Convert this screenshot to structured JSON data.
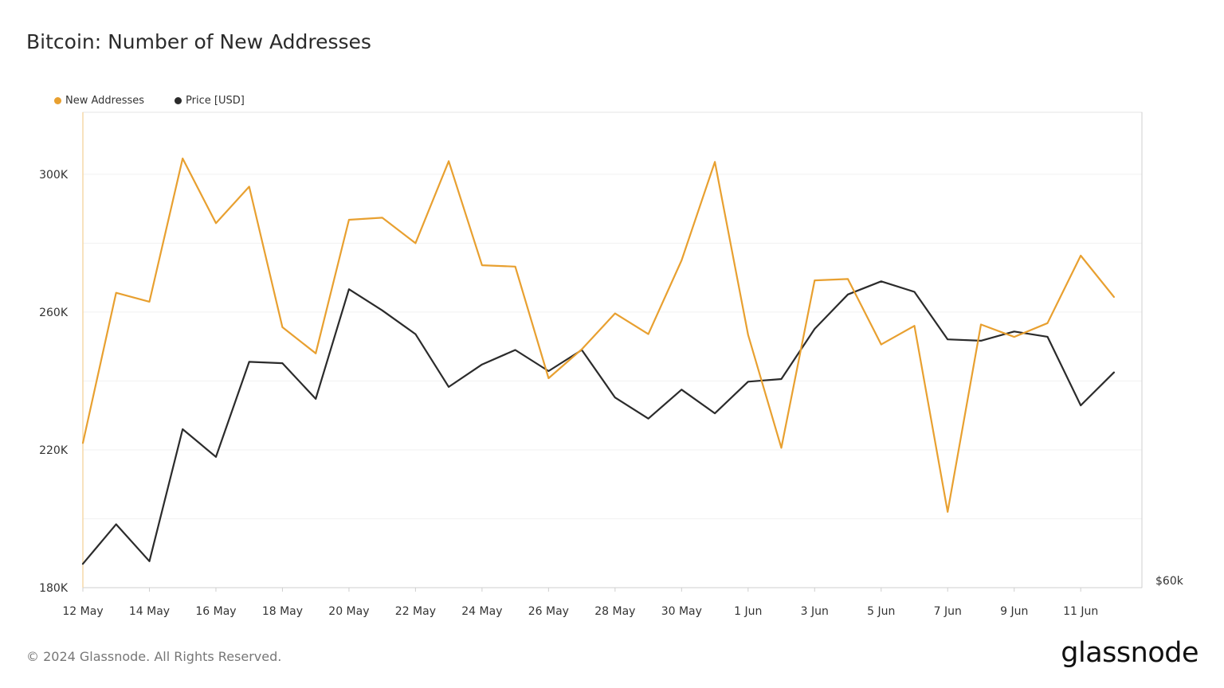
{
  "title": "Bitcoin: Number of New Addresses",
  "footer": "© 2024 Glassnode. All Rights Reserved.",
  "brand": "glassnode",
  "legend": [
    {
      "label": "New Addresses",
      "color": "#e8a030"
    },
    {
      "label": "Price [USD]",
      "color": "#2b2b2b"
    }
  ],
  "chart_data": {
    "type": "line",
    "title": "Bitcoin: Number of New Addresses",
    "x": [
      "12 May",
      "13 May",
      "14 May",
      "15 May",
      "16 May",
      "17 May",
      "18 May",
      "19 May",
      "20 May",
      "21 May",
      "22 May",
      "23 May",
      "24 May",
      "25 May",
      "26 May",
      "27 May",
      "28 May",
      "29 May",
      "30 May",
      "31 May",
      "1 Jun",
      "2 Jun",
      "3 Jun",
      "4 Jun",
      "5 Jun",
      "6 Jun",
      "7 Jun",
      "8 Jun",
      "9 Jun",
      "10 Jun",
      "11 Jun",
      "12 Jun"
    ],
    "x_tick_labels": [
      "12 May",
      "14 May",
      "16 May",
      "18 May",
      "20 May",
      "22 May",
      "24 May",
      "26 May",
      "28 May",
      "30 May",
      "1 Jun",
      "3 Jun",
      "5 Jun",
      "7 Jun",
      "9 Jun",
      "11 Jun"
    ],
    "left_axis": {
      "ticks": [
        "180K",
        "220K",
        "260K",
        "300K"
      ],
      "ylim": [
        180000,
        318000
      ]
    },
    "right_axis": {
      "ticks": [
        "$60k"
      ]
    },
    "series": [
      {
        "name": "New Addresses",
        "axis": "left",
        "color": "#e8a030",
        "values": [
          222000,
          265600,
          263000,
          304600,
          285800,
          296400,
          255600,
          248000,
          286800,
          287400,
          280000,
          303800,
          273600,
          273200,
          240800,
          249200,
          259600,
          253600,
          275000,
          303600,
          253400,
          220600,
          269200,
          269600,
          250600,
          256000,
          202000,
          256400,
          252800,
          256800,
          276400,
          264400
        ]
      },
      {
        "name": "Price [USD]",
        "axis": "right",
        "color": "#2b2b2b",
        "values": [
          60900,
          62400,
          61000,
          66000,
          64950,
          68550,
          68500,
          67150,
          71300,
          70500,
          69600,
          67600,
          68450,
          69000,
          68200,
          69000,
          67200,
          66400,
          67500,
          66600,
          67800,
          67900,
          69800,
          71100,
          71600,
          71200,
          69400,
          69350,
          69700,
          69500,
          66900,
          68150
        ]
      }
    ],
    "grid": true,
    "legend_position": "top-left"
  }
}
